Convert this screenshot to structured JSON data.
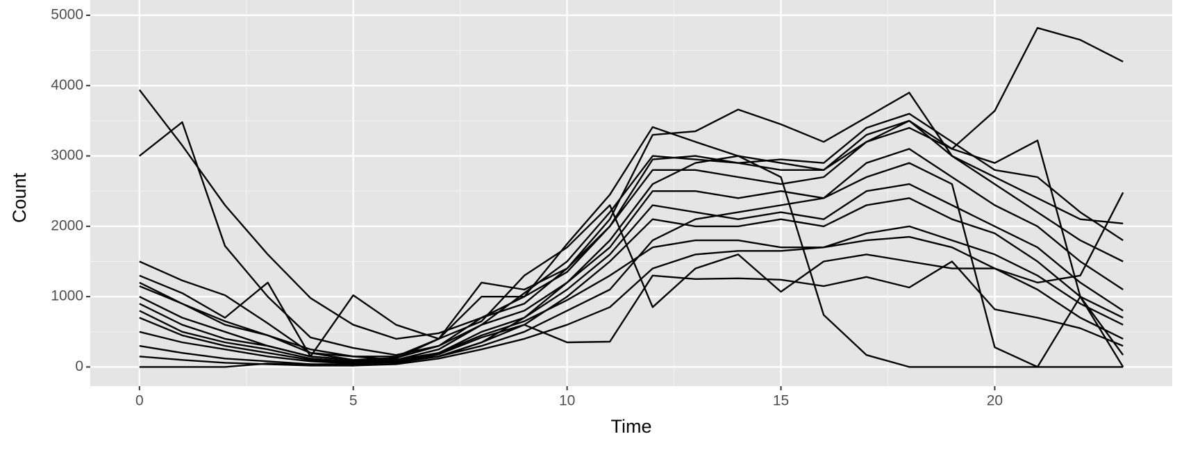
{
  "chart_data": {
    "type": "line",
    "x_label": "Time",
    "y_label": "Count",
    "x": [
      0,
      1,
      2,
      3,
      4,
      5,
      6,
      7,
      8,
      9,
      10,
      11,
      12,
      13,
      14,
      15,
      16,
      17,
      18,
      19,
      20,
      21,
      22,
      23
    ],
    "color": "#000000",
    "grid": true,
    "xlim": [
      -1.15,
      24.15
    ],
    "ylim": [
      -272,
      5217
    ],
    "xticks": [
      0,
      5,
      10,
      15,
      20
    ],
    "yticks": [
      0,
      1000,
      2000,
      3000,
      4000,
      5000
    ],
    "series": [
      {
        "values": [
          3000,
          3480,
          1720,
          1000,
          420,
          270,
          170,
          300,
          600,
          1050,
          1500,
          2200,
          3000,
          2950,
          2900,
          2800,
          2800,
          3300,
          3500,
          3000,
          2600,
          2200,
          1800,
          1500
        ]
      },
      {
        "values": [
          3940,
          3150,
          2300,
          1600,
          980,
          600,
          400,
          480,
          700,
          1000,
          1750,
          2450,
          3410,
          3200,
          3000,
          2900,
          2800,
          3200,
          3500,
          3100,
          3640,
          4820,
          4650,
          4340
        ]
      },
      {
        "values": [
          1200,
          900,
          650,
          450,
          250,
          150,
          100,
          150,
          350,
          700,
          1200,
          1800,
          2600,
          2900,
          3000,
          2700,
          740,
          170,
          0,
          0,
          0,
          0,
          0,
          0
        ]
      },
      {
        "values": [
          0,
          0,
          0,
          50,
          30,
          20,
          80,
          150,
          300,
          500,
          800,
          1100,
          1800,
          2100,
          2200,
          2300,
          2400,
          2700,
          2900,
          2600,
          280,
          0,
          1000,
          0
        ]
      },
      {
        "values": [
          500,
          350,
          250,
          150,
          80,
          50,
          60,
          150,
          350,
          600,
          350,
          360,
          1300,
          1250,
          1260,
          1240,
          1150,
          1280,
          1130,
          1500,
          820,
          700,
          550,
          300
        ]
      },
      {
        "values": [
          1150,
          900,
          600,
          450,
          200,
          150,
          150,
          400,
          1200,
          1100,
          1400,
          2000,
          2950,
          3000,
          2900,
          2950,
          2900,
          3400,
          3600,
          3200,
          2800,
          2700,
          2200,
          1800
        ]
      },
      {
        "values": [
          800,
          500,
          350,
          250,
          120,
          80,
          100,
          250,
          600,
          800,
          1200,
          1700,
          2500,
          2500,
          2400,
          2500,
          2400,
          2900,
          3100,
          2700,
          2300,
          2000,
          1500,
          1100
        ]
      },
      {
        "values": [
          300,
          200,
          120,
          80,
          40,
          40,
          80,
          200,
          450,
          650,
          950,
          1300,
          1700,
          1800,
          1800,
          1700,
          1700,
          1900,
          2000,
          1800,
          1600,
          1300,
          900,
          600
        ]
      },
      {
        "values": [
          150,
          100,
          60,
          40,
          20,
          20,
          40,
          120,
          250,
          400,
          600,
          850,
          1400,
          1600,
          1650,
          1650,
          1700,
          1800,
          1850,
          1700,
          1400,
          1100,
          700,
          400
        ]
      },
      {
        "values": [
          1500,
          1230,
          1020,
          620,
          200,
          100,
          130,
          300,
          700,
          900,
          1400,
          2100,
          3300,
          3350,
          3660,
          3450,
          3200,
          3550,
          3900,
          3000,
          2700,
          2400,
          2100,
          2040
        ]
      },
      {
        "values": [
          1300,
          1050,
          700,
          1200,
          150,
          1020,
          600,
          400,
          650,
          1300,
          1700,
          2300,
          850,
          1400,
          1600,
          1070,
          1500,
          1600,
          1500,
          1400,
          1400,
          1200,
          1300,
          2480
        ]
      },
      {
        "values": [
          1000,
          700,
          500,
          300,
          150,
          100,
          120,
          400,
          1000,
          1000,
          1350,
          2000,
          2800,
          2800,
          2700,
          2600,
          2700,
          3200,
          3400,
          3100,
          2900,
          3220,
          1000,
          170
        ]
      },
      {
        "values": [
          900,
          600,
          400,
          300,
          150,
          100,
          100,
          200,
          500,
          700,
          1100,
          1600,
          2300,
          2200,
          2100,
          2200,
          2100,
          2500,
          2600,
          2300,
          2000,
          1700,
          1200,
          800
        ]
      },
      {
        "values": [
          700,
          450,
          300,
          200,
          100,
          60,
          80,
          180,
          420,
          600,
          1000,
          1500,
          2100,
          2000,
          2000,
          2100,
          2000,
          2300,
          2400,
          2100,
          1900,
          1500,
          1000,
          700
        ]
      }
    ]
  }
}
